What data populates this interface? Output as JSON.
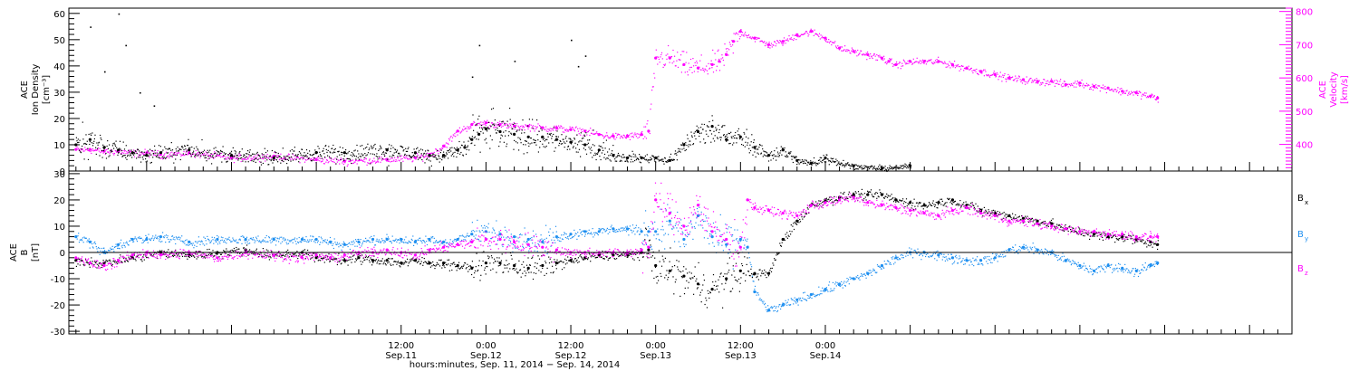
{
  "chart_data": [
    {
      "type": "scatter",
      "ylabel_lines": [
        "ACE",
        "Ion Density",
        "[cm⁻³]"
      ],
      "ylim": [
        0,
        62
      ],
      "yticks": [
        0,
        10,
        20,
        30,
        40,
        50,
        60
      ],
      "y2label_lines": [
        "ACE",
        "Velocity",
        "[km/s]"
      ],
      "y2lim": [
        320,
        810
      ],
      "y2ticks": [
        400,
        500,
        600,
        700,
        800
      ],
      "y2color": "#ff00ff",
      "series": [
        {
          "name": "Ion Density",
          "axis": "left",
          "color": "#000000",
          "x": [
            -34,
            -32,
            -30,
            -28,
            -26,
            -24,
            -22,
            -18,
            -12,
            -6,
            0,
            4,
            10,
            14,
            16,
            18,
            20,
            21,
            22,
            23,
            24,
            26,
            28,
            30,
            32,
            34,
            36,
            38,
            40,
            42,
            44,
            46,
            48,
            50,
            52,
            54,
            56,
            58,
            60,
            62,
            64,
            66,
            68,
            70,
            72,
            76,
            80,
            84
          ],
          "y": [
            10,
            12,
            9,
            8,
            7,
            6,
            7,
            8,
            6,
            5,
            7,
            7,
            8,
            7,
            6,
            6,
            8,
            9,
            12,
            14,
            16,
            15,
            14,
            13,
            13,
            12,
            11,
            10,
            8,
            6,
            5,
            5,
            5,
            4,
            10,
            15,
            17,
            12,
            13,
            9,
            6,
            8,
            4,
            3,
            5,
            2,
            1,
            2
          ],
          "y_min": [
            2,
            2,
            2,
            2,
            2,
            2,
            2,
            2,
            2,
            2,
            2,
            2,
            2,
            2,
            2,
            2,
            2,
            2,
            5,
            6,
            8,
            8,
            7,
            7,
            7,
            6,
            6,
            5,
            4,
            3,
            3,
            3,
            3,
            3,
            5,
            8,
            10,
            6,
            6,
            4,
            3,
            4,
            2,
            1,
            2,
            1,
            0,
            1
          ],
          "y_max": [
            20,
            24,
            16,
            14,
            12,
            10,
            11,
            13,
            10,
            9,
            11,
            11,
            12,
            11,
            10,
            10,
            12,
            15,
            26,
            28,
            30,
            28,
            26,
            24,
            24,
            22,
            20,
            19,
            14,
            10,
            8,
            8,
            8,
            7,
            16,
            22,
            22,
            18,
            19,
            14,
            10,
            13,
            7,
            5,
            8,
            4,
            3,
            4
          ],
          "outliers": [
            [
              -32,
              55
            ],
            [
              -30,
              38
            ],
            [
              -28,
              60
            ],
            [
              -27,
              48
            ],
            [
              -25,
              30
            ],
            [
              -23,
              25
            ],
            [
              22,
              36
            ],
            [
              23,
              48
            ],
            [
              28,
              42
            ],
            [
              36,
              50
            ],
            [
              37,
              40
            ],
            [
              38,
              44
            ]
          ]
        },
        {
          "name": "Velocity",
          "axis": "right",
          "color": "#ff00ff",
          "x": [
            -34,
            -32,
            -30,
            -28,
            -26,
            -24,
            -22,
            -18,
            -12,
            -6,
            0,
            4,
            10,
            14,
            16,
            18,
            20,
            22,
            24,
            26,
            28,
            30,
            32,
            34,
            36,
            38,
            40,
            42,
            44,
            46,
            47,
            48,
            50,
            52,
            54,
            56,
            57,
            58,
            59,
            60,
            62,
            64,
            66,
            68,
            70,
            72,
            74,
            76,
            78,
            80,
            81,
            82,
            84,
            86,
            88,
            90,
            92,
            94,
            96,
            98,
            100,
            102,
            104,
            106,
            108,
            110,
            112,
            114,
            116,
            118,
            119
          ],
          "y": [
            385,
            385,
            380,
            380,
            375,
            375,
            370,
            375,
            360,
            365,
            355,
            350,
            355,
            360,
            370,
            395,
            440,
            460,
            465,
            460,
            455,
            455,
            450,
            450,
            445,
            440,
            430,
            425,
            425,
            430,
            440,
            660,
            660,
            640,
            630,
            640,
            650,
            670,
            710,
            740,
            720,
            700,
            710,
            730,
            740,
            720,
            690,
            680,
            670,
            660,
            650,
            640,
            650,
            650,
            650,
            640,
            630,
            620,
            610,
            600,
            595,
            590,
            590,
            580,
            585,
            575,
            570,
            560,
            555,
            545,
            540
          ]
        }
      ]
    },
    {
      "type": "scatter",
      "ylabel_lines": [
        "ACE",
        "B",
        "[nT]"
      ],
      "ylim": [
        -31,
        31
      ],
      "yticks": [
        -30,
        -20,
        -10,
        0,
        10,
        20,
        30
      ],
      "zero_line": true,
      "series": [
        {
          "name": "Bx",
          "color": "#000000",
          "label_main": "B",
          "label_sub": "x",
          "x": [
            -34,
            -30,
            -26,
            -22,
            -18,
            -14,
            -10,
            -6,
            -2,
            0,
            2,
            4,
            6,
            8,
            10,
            12,
            14,
            16,
            18,
            20,
            22,
            24,
            26,
            28,
            30,
            32,
            34,
            36,
            38,
            40,
            42,
            44,
            46,
            47,
            48,
            50,
            52,
            54,
            56,
            58,
            60,
            62,
            64,
            66,
            68,
            70,
            72,
            74,
            76,
            78,
            80,
            82,
            84,
            86,
            88,
            90,
            92,
            94,
            96,
            98,
            100,
            102,
            104,
            106,
            108,
            110,
            112,
            114,
            116,
            118,
            119
          ],
          "y": [
            -3,
            -4,
            -2,
            0,
            -1,
            0,
            1,
            -1,
            0,
            -2,
            -2,
            -3,
            -2,
            -3,
            -3,
            -4,
            -3,
            -4,
            -4,
            -5,
            -6,
            -4,
            -4,
            -5,
            -6,
            -5,
            -4,
            -3,
            -2,
            -1,
            -1,
            -1,
            0,
            1,
            -5,
            -7,
            -9,
            -12,
            -14,
            -10,
            -7,
            -8,
            -8,
            5,
            12,
            18,
            20,
            21,
            22,
            22,
            22,
            20,
            19,
            18,
            19,
            20,
            18,
            16,
            15,
            14,
            13,
            12,
            11,
            9,
            8,
            7,
            6,
            6,
            5,
            4,
            3
          ],
          "spread": 2
        },
        {
          "name": "By",
          "color": "#1e8ff0",
          "label_main": "B",
          "label_sub": "y",
          "x": [
            -34,
            -32,
            -30,
            -28,
            -26,
            -24,
            -22,
            -18,
            -14,
            -10,
            -6,
            -2,
            0,
            2,
            4,
            6,
            8,
            10,
            12,
            14,
            16,
            18,
            20,
            22,
            24,
            26,
            28,
            30,
            32,
            34,
            36,
            38,
            40,
            42,
            44,
            46,
            47,
            48,
            50,
            52,
            54,
            56,
            58,
            60,
            61,
            62,
            64,
            66,
            68,
            70,
            72,
            74,
            76,
            78,
            80,
            82,
            84,
            86,
            88,
            90,
            92,
            94,
            96,
            98,
            100,
            102,
            104,
            106,
            108,
            110,
            112,
            114,
            116,
            118,
            119
          ],
          "y": [
            6,
            4,
            0,
            3,
            5,
            5,
            6,
            4,
            5,
            5,
            5,
            5,
            5,
            4,
            3,
            4,
            5,
            5,
            5,
            4,
            5,
            4,
            5,
            7,
            8,
            7,
            6,
            5,
            4,
            6,
            7,
            8,
            8,
            9,
            9,
            8,
            8,
            8,
            12,
            5,
            14,
            6,
            3,
            5,
            2,
            -15,
            -22,
            -20,
            -18,
            -16,
            -14,
            -12,
            -10,
            -8,
            -5,
            -2,
            0,
            0,
            -1,
            -2,
            -3,
            -3,
            -2,
            1,
            2,
            1,
            0,
            -3,
            -5,
            -7,
            -5,
            -6,
            -7,
            -5,
            -4
          ],
          "spread": 2
        },
        {
          "name": "Bz",
          "color": "#ff00ff",
          "label_main": "B",
          "label_sub": "z",
          "x": [
            -34,
            -32,
            -30,
            -28,
            -26,
            -24,
            -22,
            -18,
            -14,
            -10,
            -6,
            -2,
            0,
            2,
            4,
            6,
            8,
            10,
            12,
            14,
            16,
            18,
            20,
            22,
            24,
            26,
            28,
            30,
            32,
            34,
            36,
            38,
            40,
            42,
            44,
            46,
            47,
            48,
            50,
            52,
            54,
            56,
            58,
            60,
            61,
            62,
            64,
            66,
            68,
            70,
            72,
            74,
            76,
            78,
            80,
            82,
            84,
            86,
            88,
            90,
            92,
            94,
            96,
            98,
            100,
            102,
            104,
            106,
            108,
            110,
            112,
            114,
            116,
            118,
            119
          ],
          "y": [
            -2,
            -4,
            -5,
            -3,
            -1,
            0,
            -1,
            0,
            -2,
            0,
            -1,
            -2,
            -1,
            -2,
            -1,
            0,
            0,
            1,
            0,
            -1,
            1,
            2,
            3,
            4,
            5,
            5,
            4,
            3,
            2,
            1,
            0,
            0,
            0,
            0,
            0,
            1,
            2,
            20,
            15,
            10,
            18,
            8,
            5,
            2,
            20,
            17,
            16,
            15,
            14,
            18,
            19,
            20,
            21,
            19,
            18,
            17,
            16,
            15,
            14,
            16,
            17,
            15,
            14,
            12,
            12,
            11,
            10,
            9,
            8,
            8,
            7,
            7,
            6,
            6,
            6
          ],
          "spread": 2
        }
      ]
    }
  ],
  "time_axis": {
    "xlim": [
      -35,
      138
    ],
    "major_ticks": [
      {
        "x": 12,
        "time": "12:00",
        "date": "Sep.11"
      },
      {
        "x": 24,
        "time": "0:00",
        "date": "Sep.12"
      },
      {
        "x": 36,
        "time": "12:00",
        "date": "Sep.12"
      },
      {
        "x": 48,
        "time": "0:00",
        "date": "Sep.13"
      },
      {
        "x": 60,
        "time": "12:00",
        "date": "Sep.13"
      },
      {
        "x": 72,
        "time": "0:00",
        "date": "Sep.14"
      }
    ],
    "minor_step": 2,
    "xlabel": "hours:minutes, Sep. 11, 2014 − Sep. 14, 2014"
  }
}
